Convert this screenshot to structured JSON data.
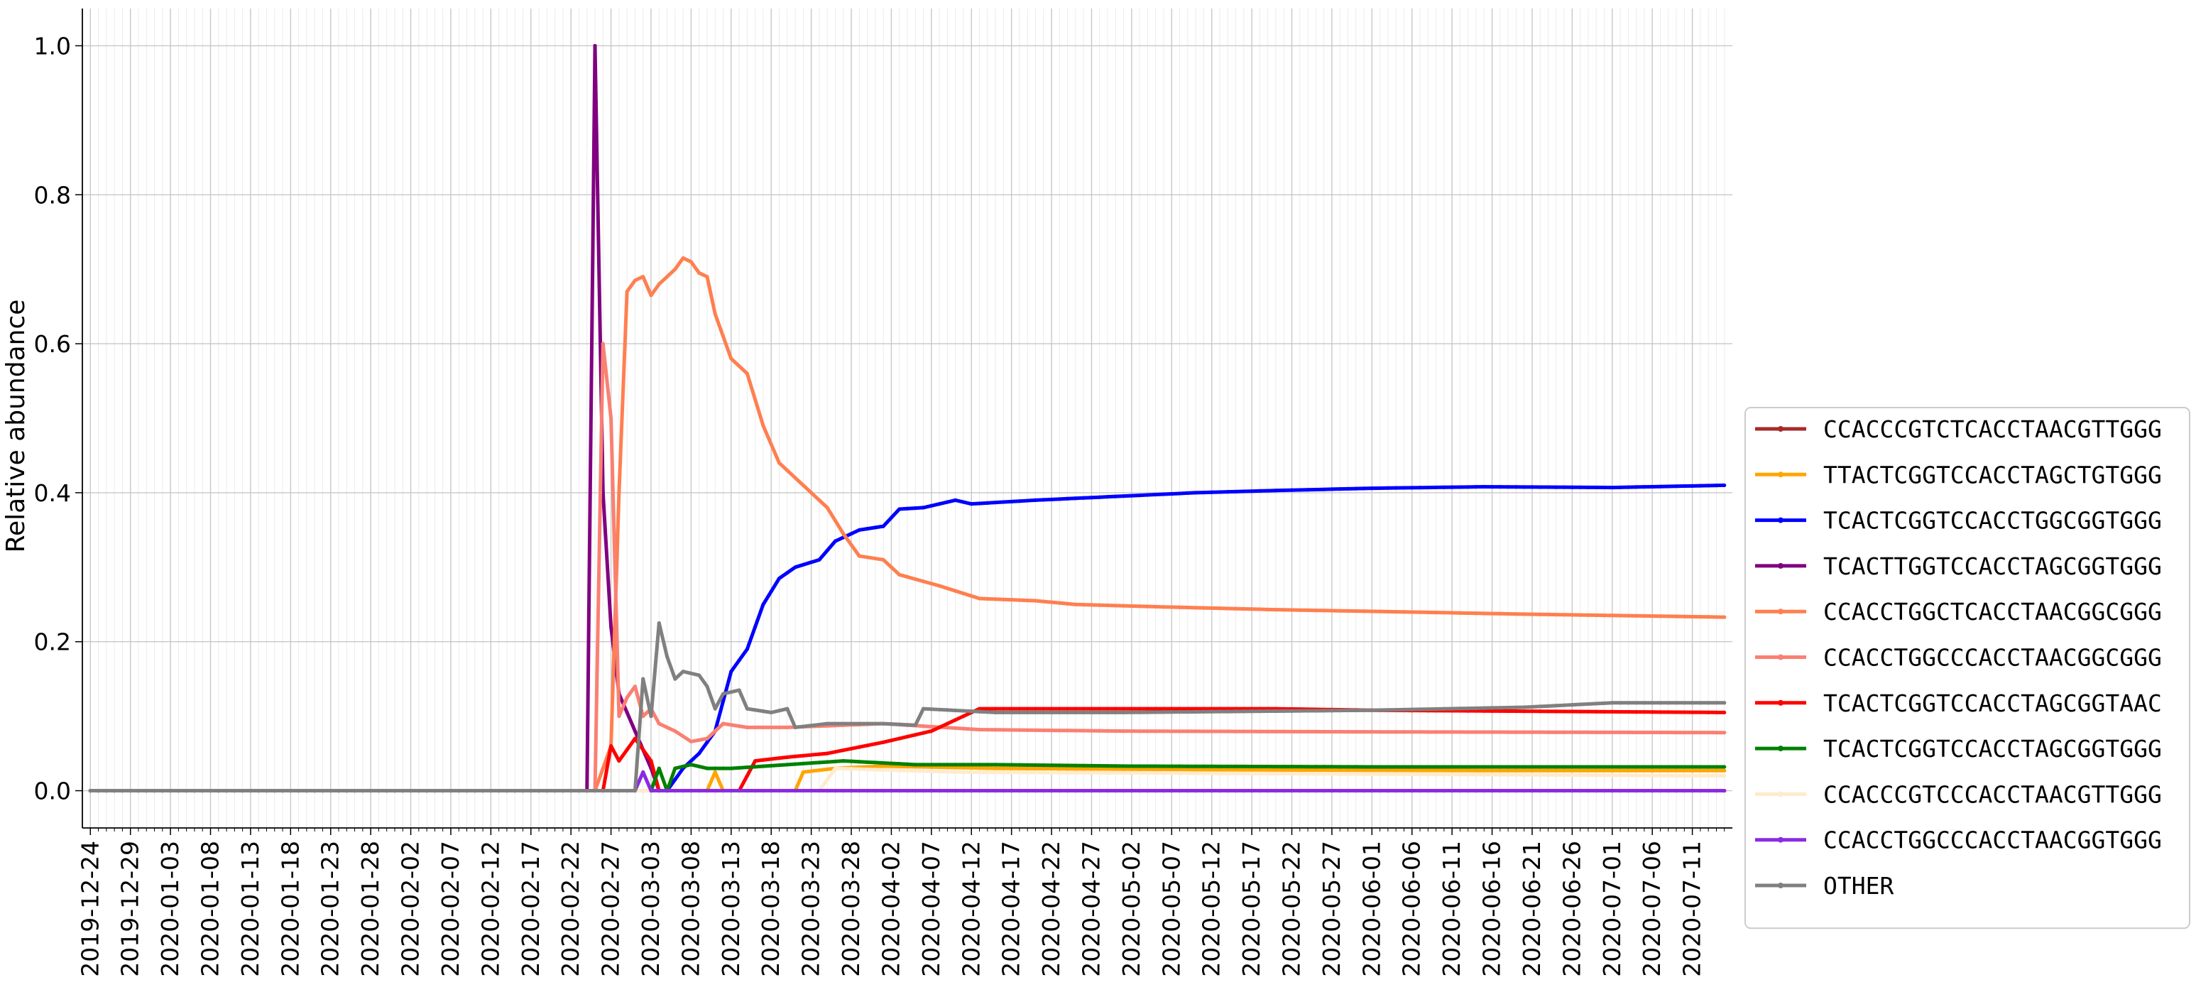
{
  "chart_data": {
    "type": "line",
    "title": "",
    "xlabel": "",
    "ylabel": "Relative abundance",
    "x_tick_labels": [
      "2019-12-24",
      "2019-12-29",
      "2020-01-03",
      "2020-01-08",
      "2020-01-13",
      "2020-01-18",
      "2020-01-23",
      "2020-01-28",
      "2020-02-02",
      "2020-02-07",
      "2020-02-12",
      "2020-02-17",
      "2020-02-22",
      "2020-02-27",
      "2020-03-03",
      "2020-03-08",
      "2020-03-13",
      "2020-03-18",
      "2020-03-23",
      "2020-03-28",
      "2020-04-02",
      "2020-04-07",
      "2020-04-12",
      "2020-04-17",
      "2020-04-22",
      "2020-04-27",
      "2020-05-02",
      "2020-05-07",
      "2020-05-12",
      "2020-05-17",
      "2020-05-22",
      "2020-05-27",
      "2020-06-01",
      "2020-06-06",
      "2020-06-11",
      "2020-06-16",
      "2020-06-21",
      "2020-06-26",
      "2020-07-01",
      "2020-07-06",
      "2020-07-11"
    ],
    "y_ticks": [
      "0.0",
      "0.2",
      "0.4",
      "0.6",
      "0.8",
      "1.0"
    ],
    "xlim": [
      "2019-12-23",
      "2020-07-16"
    ],
    "ylim": [
      -0.05,
      1.05
    ],
    "grid": true,
    "legend_position": "right",
    "series": [
      {
        "name": "CCACCCGTCTCACCTAACGTTGGG",
        "color": "#a52a2a",
        "points": [
          [
            "2019-12-24",
            0
          ],
          [
            "2020-02-26",
            0
          ],
          [
            "2020-07-15",
            0
          ]
        ]
      },
      {
        "name": "TTACTCGGTCCACCTAGCTGTGGG",
        "color": "#ffa500",
        "points": [
          [
            "2019-12-24",
            0
          ],
          [
            "2020-03-10",
            0
          ],
          [
            "2020-03-11",
            0.025
          ],
          [
            "2020-03-12",
            0
          ],
          [
            "2020-03-21",
            0
          ],
          [
            "2020-03-22",
            0.025
          ],
          [
            "2020-03-26",
            0.03
          ],
          [
            "2020-04-01",
            0.033
          ],
          [
            "2020-04-15",
            0.03
          ],
          [
            "2020-05-15",
            0.028
          ],
          [
            "2020-06-15",
            0.027
          ],
          [
            "2020-07-15",
            0.027
          ]
        ]
      },
      {
        "name": "TCACTCGGTCCACCTGGCGGTGGG",
        "color": "#0000ff",
        "points": [
          [
            "2019-12-24",
            0
          ],
          [
            "2020-03-05",
            0
          ],
          [
            "2020-03-07",
            0.03
          ],
          [
            "2020-03-09",
            0.05
          ],
          [
            "2020-03-11",
            0.08
          ],
          [
            "2020-03-13",
            0.16
          ],
          [
            "2020-03-15",
            0.19
          ],
          [
            "2020-03-17",
            0.25
          ],
          [
            "2020-03-19",
            0.285
          ],
          [
            "2020-03-21",
            0.3
          ],
          [
            "2020-03-24",
            0.31
          ],
          [
            "2020-03-26",
            0.335
          ],
          [
            "2020-03-29",
            0.35
          ],
          [
            "2020-04-01",
            0.355
          ],
          [
            "2020-04-03",
            0.378
          ],
          [
            "2020-04-06",
            0.38
          ],
          [
            "2020-04-10",
            0.39
          ],
          [
            "2020-04-12",
            0.385
          ],
          [
            "2020-04-20",
            0.39
          ],
          [
            "2020-04-30",
            0.395
          ],
          [
            "2020-05-10",
            0.4
          ],
          [
            "2020-05-20",
            0.403
          ],
          [
            "2020-06-01",
            0.406
          ],
          [
            "2020-06-15",
            0.408
          ],
          [
            "2020-07-01",
            0.407
          ],
          [
            "2020-07-15",
            0.41
          ]
        ]
      },
      {
        "name": "TCACTTGGTCCACCTAGCGGTGGG",
        "color": "#800080",
        "points": [
          [
            "2019-12-24",
            0
          ],
          [
            "2020-02-24",
            0
          ],
          [
            "2020-02-25",
            1.0
          ],
          [
            "2020-02-26",
            0.4
          ],
          [
            "2020-02-27",
            0.22
          ],
          [
            "2020-02-28",
            0.13
          ],
          [
            "2020-03-01",
            0.08
          ],
          [
            "2020-03-03",
            0.03
          ],
          [
            "2020-03-04",
            0
          ],
          [
            "2020-07-15",
            0
          ]
        ]
      },
      {
        "name": "CCACCTGGCTCACCTAACGGCGGG",
        "color": "#ff7f50",
        "points": [
          [
            "2019-12-24",
            0
          ],
          [
            "2020-02-25",
            0
          ],
          [
            "2020-02-27",
            0.06
          ],
          [
            "2020-02-28",
            0.4
          ],
          [
            "2020-02-29",
            0.67
          ],
          [
            "2020-03-01",
            0.685
          ],
          [
            "2020-03-02",
            0.69
          ],
          [
            "2020-03-03",
            0.665
          ],
          [
            "2020-03-04",
            0.68
          ],
          [
            "2020-03-06",
            0.7
          ],
          [
            "2020-03-07",
            0.715
          ],
          [
            "2020-03-08",
            0.71
          ],
          [
            "2020-03-09",
            0.695
          ],
          [
            "2020-03-10",
            0.69
          ],
          [
            "2020-03-11",
            0.64
          ],
          [
            "2020-03-13",
            0.58
          ],
          [
            "2020-03-15",
            0.56
          ],
          [
            "2020-03-17",
            0.49
          ],
          [
            "2020-03-19",
            0.44
          ],
          [
            "2020-03-22",
            0.41
          ],
          [
            "2020-03-25",
            0.38
          ],
          [
            "2020-03-27",
            0.345
          ],
          [
            "2020-03-29",
            0.315
          ],
          [
            "2020-04-01",
            0.31
          ],
          [
            "2020-04-03",
            0.29
          ],
          [
            "2020-04-08",
            0.275
          ],
          [
            "2020-04-13",
            0.258
          ],
          [
            "2020-04-20",
            0.255
          ],
          [
            "2020-04-25",
            0.25
          ],
          [
            "2020-05-05",
            0.247
          ],
          [
            "2020-05-20",
            0.243
          ],
          [
            "2020-06-05",
            0.24
          ],
          [
            "2020-06-20",
            0.237
          ],
          [
            "2020-07-15",
            0.233
          ]
        ]
      },
      {
        "name": "CCACCTGGCCCACCTAACGGCGGG",
        "color": "#fa8072",
        "points": [
          [
            "2019-12-24",
            0
          ],
          [
            "2020-02-25",
            0
          ],
          [
            "2020-02-26",
            0.6
          ],
          [
            "2020-02-27",
            0.5
          ],
          [
            "2020-02-28",
            0.1
          ],
          [
            "2020-02-29",
            0.125
          ],
          [
            "2020-03-01",
            0.14
          ],
          [
            "2020-03-02",
            0.1
          ],
          [
            "2020-03-03",
            0.11
          ],
          [
            "2020-03-04",
            0.09
          ],
          [
            "2020-03-06",
            0.08
          ],
          [
            "2020-03-08",
            0.066
          ],
          [
            "2020-03-10",
            0.07
          ],
          [
            "2020-03-12",
            0.09
          ],
          [
            "2020-03-15",
            0.085
          ],
          [
            "2020-03-20",
            0.085
          ],
          [
            "2020-04-01",
            0.09
          ],
          [
            "2020-04-13",
            0.082
          ],
          [
            "2020-05-01",
            0.08
          ],
          [
            "2020-06-01",
            0.079
          ],
          [
            "2020-07-15",
            0.078
          ]
        ]
      },
      {
        "name": "TCACTCGGTCCACCTAGCGGTAAC",
        "color": "#ff0000",
        "points": [
          [
            "2019-12-24",
            0
          ],
          [
            "2020-02-26",
            0
          ],
          [
            "2020-02-27",
            0.06
          ],
          [
            "2020-02-28",
            0.04
          ],
          [
            "2020-03-01",
            0.07
          ],
          [
            "2020-03-03",
            0.04
          ],
          [
            "2020-03-04",
            0
          ],
          [
            "2020-03-14",
            0
          ],
          [
            "2020-03-16",
            0.04
          ],
          [
            "2020-03-20",
            0.045
          ],
          [
            "2020-03-25",
            0.05
          ],
          [
            "2020-04-01",
            0.065
          ],
          [
            "2020-04-07",
            0.08
          ],
          [
            "2020-04-11",
            0.1
          ],
          [
            "2020-04-13",
            0.11
          ],
          [
            "2020-05-01",
            0.11
          ],
          [
            "2020-05-20",
            0.11
          ],
          [
            "2020-06-01",
            0.108
          ],
          [
            "2020-07-15",
            0.105
          ]
        ]
      },
      {
        "name": "TCACTCGGTCCACCTAGCGGTGGG",
        "color": "#008000",
        "points": [
          [
            "2019-12-24",
            0
          ],
          [
            "2020-03-03",
            0
          ],
          [
            "2020-03-04",
            0.03
          ],
          [
            "2020-03-05",
            0
          ],
          [
            "2020-03-06",
            0.03
          ],
          [
            "2020-03-08",
            0.035
          ],
          [
            "2020-03-10",
            0.03
          ],
          [
            "2020-03-13",
            0.03
          ],
          [
            "2020-03-20",
            0.035
          ],
          [
            "2020-03-27",
            0.04
          ],
          [
            "2020-04-05",
            0.035
          ],
          [
            "2020-04-15",
            0.035
          ],
          [
            "2020-05-01",
            0.033
          ],
          [
            "2020-06-01",
            0.032
          ],
          [
            "2020-07-15",
            0.032
          ]
        ]
      },
      {
        "name": "CCACCCGTCCCACCTAACGTTGGG",
        "color": "#ffebcd",
        "points": [
          [
            "2019-12-24",
            0
          ],
          [
            "2020-03-24",
            0
          ],
          [
            "2020-03-26",
            0.03
          ],
          [
            "2020-04-10",
            0.025
          ],
          [
            "2020-07-15",
            0.02
          ]
        ]
      },
      {
        "name": "CCACCTGGCCCACCTAACGGTGGG",
        "color": "#8a2be2",
        "points": [
          [
            "2019-12-24",
            0
          ],
          [
            "2020-03-01",
            0
          ],
          [
            "2020-03-02",
            0.025
          ],
          [
            "2020-03-03",
            0
          ],
          [
            "2020-07-15",
            0
          ]
        ]
      },
      {
        "name": "OTHER",
        "color": "#808080",
        "points": [
          [
            "2019-12-24",
            0
          ],
          [
            "2020-03-01",
            0
          ],
          [
            "2020-03-02",
            0.15
          ],
          [
            "2020-03-03",
            0.1
          ],
          [
            "2020-03-04",
            0.225
          ],
          [
            "2020-03-05",
            0.18
          ],
          [
            "2020-03-06",
            0.15
          ],
          [
            "2020-03-07",
            0.16
          ],
          [
            "2020-03-09",
            0.155
          ],
          [
            "2020-03-10",
            0.14
          ],
          [
            "2020-03-11",
            0.11
          ],
          [
            "2020-03-12",
            0.13
          ],
          [
            "2020-03-14",
            0.135
          ],
          [
            "2020-03-15",
            0.11
          ],
          [
            "2020-03-18",
            0.105
          ],
          [
            "2020-03-20",
            0.11
          ],
          [
            "2020-03-21",
            0.085
          ],
          [
            "2020-03-25",
            0.09
          ],
          [
            "2020-04-01",
            0.09
          ],
          [
            "2020-04-05",
            0.088
          ],
          [
            "2020-04-06",
            0.11
          ],
          [
            "2020-04-15",
            0.105
          ],
          [
            "2020-05-01",
            0.105
          ],
          [
            "2020-06-01",
            0.108
          ],
          [
            "2020-06-20",
            0.112
          ],
          [
            "2020-07-01",
            0.118
          ],
          [
            "2020-07-15",
            0.118
          ]
        ]
      }
    ]
  }
}
